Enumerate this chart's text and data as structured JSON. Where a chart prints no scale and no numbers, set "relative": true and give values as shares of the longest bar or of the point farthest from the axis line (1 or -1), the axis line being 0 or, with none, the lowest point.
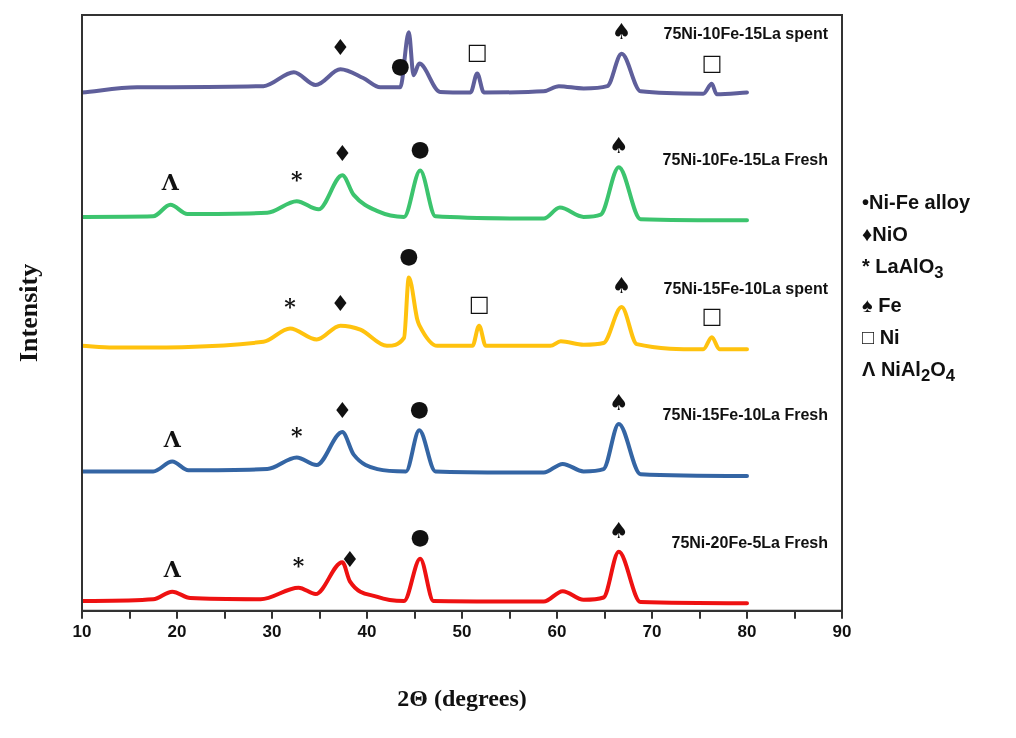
{
  "chart_data": {
    "type": "line",
    "relative": true,
    "xlabel": "2Θ (degrees)",
    "ylabel": "Intensity",
    "xlim": [
      10,
      90
    ],
    "xticks": [
      10,
      {
        "value": 15,
        "label": null
      },
      20,
      {
        "value": 25,
        "label": null
      },
      30,
      {
        "value": 35,
        "label": null
      },
      40,
      {
        "value": 45,
        "label": null
      },
      50,
      {
        "value": 55,
        "label": null
      },
      60,
      {
        "value": 65,
        "label": null
      },
      70,
      {
        "value": 75,
        "label": null
      },
      80,
      {
        "value": 85,
        "label": null
      },
      90
    ],
    "series": [
      {
        "name": "75Ni-10Fe-15La spent",
        "color": "#5f5f9b",
        "x": [
          10,
          15.8,
          29.1,
          32.3,
          34.6,
          37.2,
          39.6,
          41.4,
          43.5,
          44.4,
          44.9,
          45.5,
          47.7,
          50.9,
          51.6,
          52.3,
          58.6,
          60.2,
          62.8,
          65.3,
          66.8,
          68.8,
          75.4,
          76.3,
          76.8,
          80
        ],
        "values": [
          0.896,
          0.905,
          0.907,
          0.931,
          0.909,
          0.936,
          0.921,
          0.905,
          0.905,
          1,
          0.926,
          0.946,
          0.897,
          0.896,
          0.929,
          0.896,
          0.898,
          0.907,
          0.903,
          0.907,
          0.963,
          0.898,
          0.894,
          0.911,
          0.893,
          0.896
        ]
      },
      {
        "name": "75Ni-10Fe-15La Fresh",
        "color": "#3cc46e",
        "x": [
          10,
          17.5,
          19.3,
          21.1,
          29.5,
          32.6,
          34.9,
          37.4,
          38.6,
          41.1,
          43.9,
          45.6,
          47.2,
          58.6,
          60.3,
          62.8,
          64.6,
          66.5,
          68.8,
          80
        ],
        "values": [
          0.681,
          0.682,
          0.702,
          0.686,
          0.688,
          0.708,
          0.694,
          0.753,
          0.719,
          0.691,
          0.681,
          0.761,
          0.682,
          0.678,
          0.697,
          0.681,
          0.685,
          0.767,
          0.677,
          0.675
        ]
      },
      {
        "name": "75Ni-15Fe-10La spent",
        "color": "#ffc20e",
        "x": [
          10,
          13.3,
          29.1,
          31.9,
          34.7,
          37.2,
          39.3,
          42.1,
          43.9,
          44.4,
          45.3,
          45.5,
          47.4,
          51.1,
          51.8,
          52.5,
          59.3,
          60.4,
          62.8,
          64.9,
          66.8,
          68.4,
          75.4,
          76.3,
          77.1,
          80
        ],
        "values": [
          0.458,
          0.455,
          0.465,
          0.488,
          0.469,
          0.493,
          0.486,
          0.458,
          0.472,
          0.576,
          0.503,
          0.494,
          0.458,
          0.458,
          0.493,
          0.458,
          0.458,
          0.466,
          0.46,
          0.463,
          0.525,
          0.461,
          0.452,
          0.473,
          0.452,
          0.452
        ]
      },
      {
        "name": "75Ni-15Fe-10La Fresh",
        "color": "#3465a4",
        "x": [
          10,
          17.5,
          19.5,
          21.2,
          29.5,
          32.6,
          34.7,
          37.4,
          38.6,
          41.1,
          44.1,
          45.5,
          47.2,
          58.6,
          60.6,
          62.8,
          64.9,
          66.5,
          68.8,
          80
        ],
        "values": [
          0.241,
          0.241,
          0.258,
          0.243,
          0.245,
          0.265,
          0.252,
          0.309,
          0.27,
          0.245,
          0.241,
          0.312,
          0.241,
          0.239,
          0.254,
          0.241,
          0.245,
          0.323,
          0.236,
          0.233
        ]
      },
      {
        "name": "75Ni-20Fe-5La Fresh",
        "color": "#ee1111",
        "x": [
          10,
          17.5,
          19.5,
          21.4,
          28.8,
          32.8,
          34.6,
          37.4,
          38.2,
          41.1,
          43.9,
          45.6,
          47,
          58.6,
          60.6,
          62.8,
          64.9,
          66.5,
          68.8,
          80
        ],
        "values": [
          0.017,
          0.02,
          0.033,
          0.022,
          0.02,
          0.04,
          0.029,
          0.084,
          0.051,
          0.024,
          0.017,
          0.09,
          0.017,
          0.016,
          0.034,
          0.019,
          0.023,
          0.102,
          0.015,
          0.013
        ]
      }
    ],
    "annotations": [
      "•Ni-Fe alloy",
      "♦NiO",
      "* LaAlO$_{3}$",
      "♠ Fe",
      "□ Ni",
      "Λ NiAl$_{2}$O$_{4}$",
      {
        "text": "♦",
        "x": 37.2,
        "y": 0.936
      },
      {
        "text": "●",
        "x": 43.5,
        "y": 0.905
      },
      {
        "text": "□",
        "x": 51.6,
        "y": 0.929
      },
      {
        "text": "♠",
        "x": 66.8,
        "y": 0.963
      },
      {
        "text": "□",
        "x": 76.3,
        "y": 0.911
      },
      {
        "text": "Λ",
        "x": 19.3,
        "y": 0.702
      },
      {
        "text": "*",
        "x": 32.6,
        "y": 0.708
      },
      {
        "text": "♦",
        "x": 37.4,
        "y": 0.753
      },
      {
        "text": "●",
        "x": 45.6,
        "y": 0.761
      },
      {
        "text": "♠",
        "x": 66.5,
        "y": 0.767
      },
      {
        "text": "*",
        "x": 31.9,
        "y": 0.488
      },
      {
        "text": "♦",
        "x": 37.2,
        "y": 0.493
      },
      {
        "text": "●",
        "x": 44.4,
        "y": 0.576
      },
      {
        "text": "□",
        "x": 51.8,
        "y": 0.493
      },
      {
        "text": "♠",
        "x": 66.8,
        "y": 0.525
      },
      {
        "text": "□",
        "x": 76.3,
        "y": 0.473
      },
      {
        "text": "Λ",
        "x": 19.5,
        "y": 0.258
      },
      {
        "text": "*",
        "x": 32.6,
        "y": 0.265
      },
      {
        "text": "♦",
        "x": 37.4,
        "y": 0.309
      },
      {
        "text": "●",
        "x": 45.5,
        "y": 0.312
      },
      {
        "text": "♠",
        "x": 66.5,
        "y": 0.323
      },
      {
        "text": "Λ",
        "x": 19.5,
        "y": 0.033
      },
      {
        "text": "*",
        "x": 32.8,
        "y": 0.04
      },
      {
        "text": "♦",
        "x": 38.2,
        "y": 0.051
      },
      {
        "text": "●",
        "x": 45.6,
        "y": 0.09
      },
      {
        "text": "♠",
        "x": 66.5,
        "y": 0.102
      }
    ]
  }
}
